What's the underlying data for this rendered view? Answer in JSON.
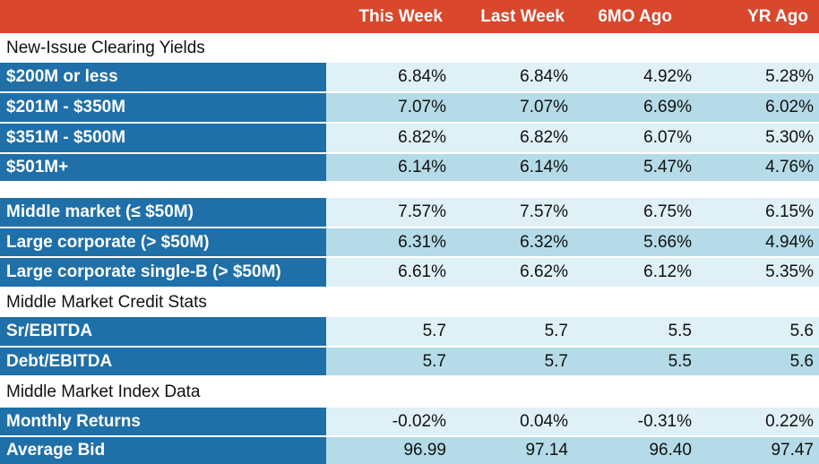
{
  "headers": [
    "This Week",
    "Last Week",
    "6MO Ago",
    "YR Ago"
  ],
  "sections": {
    "new_issue": "New-Issue Clearing Yields",
    "credit_stats": "Middle Market Credit Stats",
    "index_data": "Middle Market Index Data"
  },
  "rows": [
    {
      "label": "$200M or less",
      "values": [
        "6.84%",
        "6.84%",
        "4.92%",
        "5.28%"
      ]
    },
    {
      "label": "$201M - $350M",
      "values": [
        "7.07%",
        "7.07%",
        "6.69%",
        "6.02%"
      ]
    },
    {
      "label": "$351M - $500M",
      "values": [
        "6.82%",
        "6.82%",
        "6.07%",
        "5.30%"
      ]
    },
    {
      "label": "$501M+",
      "values": [
        "6.14%",
        "6.14%",
        "5.47%",
        "4.76%"
      ]
    },
    {
      "label": "Middle market (≤ $50M)",
      "values": [
        "7.57%",
        "7.57%",
        "6.75%",
        "6.15%"
      ]
    },
    {
      "label": "Large corporate (> $50M)",
      "values": [
        "6.31%",
        "6.32%",
        "5.66%",
        "4.94%"
      ]
    },
    {
      "label": "Large corporate single-B (> $50M)",
      "values": [
        "6.61%",
        "6.62%",
        "6.12%",
        "5.35%"
      ]
    },
    {
      "label": "Sr/EBITDA",
      "values": [
        "5.7",
        "5.7",
        "5.5",
        "5.6"
      ]
    },
    {
      "label": "Debt/EBITDA",
      "values": [
        "5.7",
        "5.7",
        "5.5",
        "5.6"
      ]
    },
    {
      "label": "Monthly Returns",
      "values": [
        "-0.02%",
        "0.04%",
        "-0.31%",
        "0.22%"
      ]
    },
    {
      "label": "Average Bid",
      "values": [
        "96.99",
        "97.14",
        "96.40",
        "97.47"
      ]
    }
  ]
}
